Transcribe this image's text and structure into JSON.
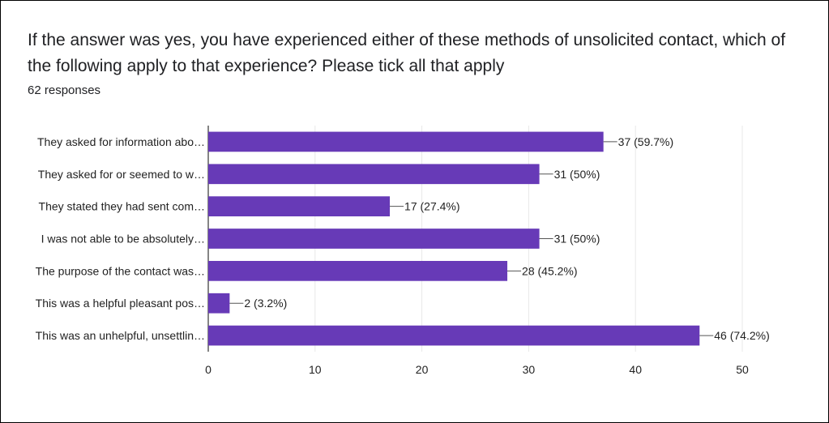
{
  "question": {
    "title": "If the answer was yes, you have experienced either of these methods of unsolicited contact, which of the following apply to that experience?  Please tick all that apply",
    "responses": "62 responses"
  },
  "colors": {
    "bar": "#673ab7",
    "grid": "#e8e8e8",
    "axis": "#333333",
    "text": "#222222"
  },
  "chart_data": {
    "type": "bar",
    "orientation": "horizontal",
    "categories": [
      "They asked for information abo…",
      "They asked for or seemed to w…",
      "They stated they had sent com…",
      "I was not able to be absolutely…",
      "The purpose of the contact was…",
      "This was a helpful pleasant pos…",
      "This was an unhelpful, unsettlin…"
    ],
    "values": [
      37,
      31,
      17,
      31,
      28,
      2,
      46
    ],
    "data_labels": [
      "37 (59.7%)",
      "31 (50%)",
      "17 (27.4%)",
      "31 (50%)",
      "28 (45.2%)",
      "2 (3.2%)",
      "46 (74.2%)"
    ],
    "xlim": [
      0,
      50
    ],
    "xticks": [
      0,
      10,
      20,
      30,
      40,
      50
    ],
    "grid": true
  }
}
